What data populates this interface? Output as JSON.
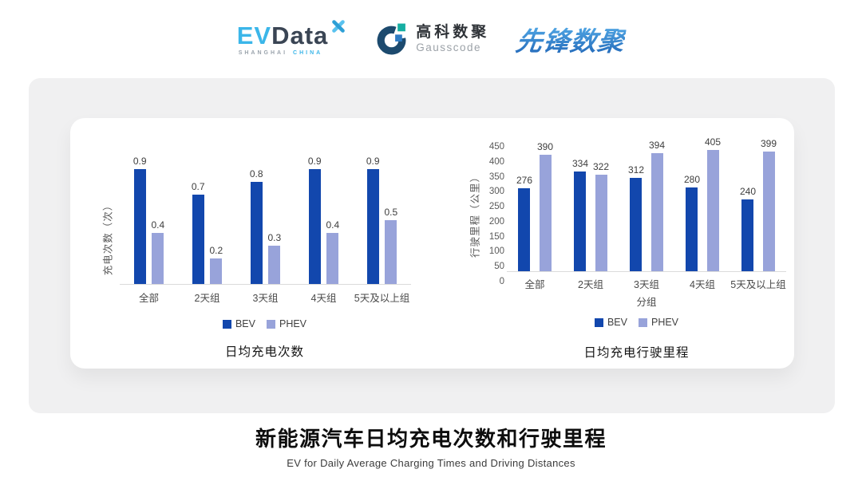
{
  "header": {
    "logos": {
      "evdata": {
        "ev": "EV",
        "data": "Data",
        "sub_left": "SHANGHAI",
        "sub_right": "CHINA"
      },
      "gausscode": {
        "cn": "高科数聚",
        "en": "Gausscode"
      },
      "pioneer": {
        "text": "先锋数聚"
      }
    }
  },
  "colors": {
    "bev": "#1247AD",
    "phev": "#98A3DA",
    "baseline": "#DBDBDB"
  },
  "chart_data": [
    {
      "type": "bar",
      "title": "日均充电次数",
      "ylabel": "充电次数（次）",
      "xlabel": "",
      "categories": [
        "全部",
        "2天组",
        "3天组",
        "4天组",
        "5天及以上组"
      ],
      "series": [
        {
          "name": "BEV",
          "values": [
            0.9,
            0.7,
            0.8,
            0.9,
            0.9
          ]
        },
        {
          "name": "PHEV",
          "values": [
            0.4,
            0.2,
            0.3,
            0.4,
            0.5
          ]
        }
      ],
      "ylim": [
        0,
        1.0
      ],
      "yticks": [],
      "legend": [
        "BEV",
        "PHEV"
      ],
      "legend_position": "bottom",
      "grid": false,
      "data_labels": true
    },
    {
      "type": "bar",
      "title": "日均充电行驶里程",
      "ylabel": "行驶里程（公里）",
      "xlabel": "分组",
      "categories": [
        "全部",
        "2天组",
        "3天组",
        "4天组",
        "5天及以上组"
      ],
      "series": [
        {
          "name": "BEV",
          "values": [
            276,
            334,
            312,
            280,
            240
          ]
        },
        {
          "name": "PHEV",
          "values": [
            390,
            322,
            394,
            405,
            399
          ]
        }
      ],
      "ylim": [
        0,
        450
      ],
      "yticks": [
        450,
        400,
        350,
        300,
        250,
        200,
        150,
        100,
        50,
        0
      ],
      "legend": [
        "BEV",
        "PHEV"
      ],
      "legend_position": "bottom",
      "grid": false,
      "data_labels": true
    }
  ],
  "footer": {
    "title": "新能源汽车日均充电次数和行驶里程",
    "subtitle": "EV for Daily Average Charging Times and Driving Distances"
  }
}
